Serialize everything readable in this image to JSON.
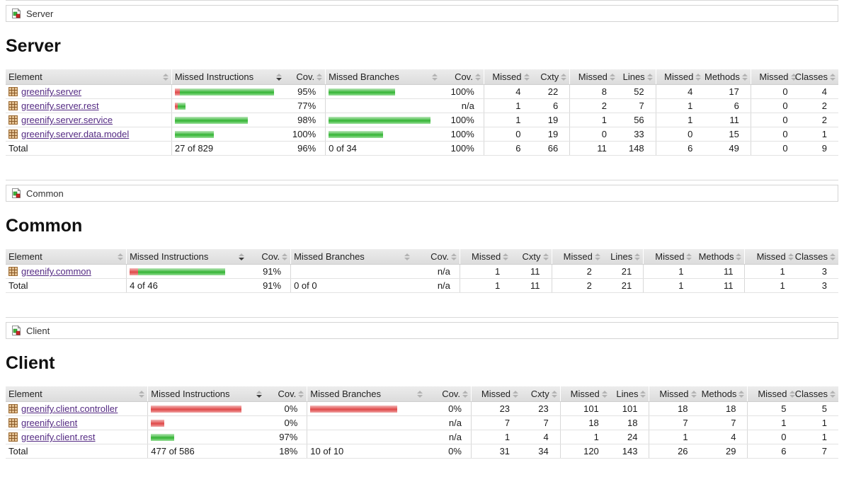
{
  "columns": [
    "Element",
    "Missed Instructions",
    "Cov.",
    "Missed Branches",
    "Cov.",
    "Missed",
    "Cxty",
    "Missed",
    "Lines",
    "Missed",
    "Methods",
    "Missed",
    "Classes"
  ],
  "colors": {
    "covered_green": "#34b434",
    "missed_red": "#e04848",
    "link_purple": "#542a83",
    "header_gray": "#e0e0e0"
  },
  "icons": {
    "breadcrumb": "report-group-icon",
    "package": "package-icon",
    "sort": "sort-arrows-icon"
  },
  "sections": [
    {
      "crumb": "Server",
      "title": "Server",
      "rows": [
        {
          "name": "greenify.server",
          "ibar": {
            "red": 7,
            "green": 133
          },
          "icov": "95%",
          "bbar": {
            "red": 0,
            "green": 94
          },
          "bcov": "100%",
          "vals": [
            "4",
            "22",
            "8",
            "52",
            "4",
            "17",
            "0",
            "4"
          ]
        },
        {
          "name": "greenify.server.rest",
          "ibar": {
            "red": 4,
            "green": 11
          },
          "icov": "77%",
          "bbar": {
            "red": 0,
            "green": 0
          },
          "bcov": "n/a",
          "vals": [
            "1",
            "6",
            "2",
            "7",
            "1",
            "6",
            "0",
            "2"
          ]
        },
        {
          "name": "greenify.server.service",
          "ibar": {
            "red": 0,
            "green": 103
          },
          "icov": "98%",
          "bbar": {
            "red": 0,
            "green": 144
          },
          "bcov": "100%",
          "vals": [
            "1",
            "19",
            "1",
            "56",
            "1",
            "11",
            "0",
            "2"
          ]
        },
        {
          "name": "greenify.server.data.model",
          "ibar": {
            "red": 0,
            "green": 55
          },
          "icov": "100%",
          "bbar": {
            "red": 0,
            "green": 77
          },
          "bcov": "100%",
          "vals": [
            "0",
            "19",
            "0",
            "33",
            "0",
            "15",
            "0",
            "1"
          ]
        }
      ],
      "total": {
        "label": "Total",
        "instr": "27 of 829",
        "icov": "96%",
        "branch": "0 of 34",
        "bcov": "100%",
        "vals": [
          "6",
          "66",
          "11",
          "148",
          "6",
          "49",
          "0",
          "9"
        ]
      }
    },
    {
      "crumb": "Common",
      "title": "Common",
      "rows": [
        {
          "name": "greenify.common",
          "ibar": {
            "red": 12,
            "green": 123
          },
          "icov": "91%",
          "bbar": {
            "red": 0,
            "green": 0
          },
          "bcov": "n/a",
          "vals": [
            "1",
            "11",
            "2",
            "21",
            "1",
            "11",
            "1",
            "3"
          ]
        }
      ],
      "total": {
        "label": "Total",
        "instr": "4 of 46",
        "icov": "91%",
        "branch": "0 of 0",
        "bcov": "n/a",
        "vals": [
          "1",
          "11",
          "2",
          "21",
          "1",
          "11",
          "1",
          "3"
        ]
      }
    },
    {
      "crumb": "Client",
      "title": "Client",
      "rows": [
        {
          "name": "greenify.client.controller",
          "ibar": {
            "red": 128,
            "green": 0
          },
          "icov": "0%",
          "bbar": {
            "red": 123,
            "green": 0
          },
          "bcov": "0%",
          "vals": [
            "23",
            "23",
            "101",
            "101",
            "18",
            "18",
            "5",
            "5"
          ]
        },
        {
          "name": "greenify.client",
          "ibar": {
            "red": 19,
            "green": 0
          },
          "icov": "0%",
          "bbar": {
            "red": 0,
            "green": 0
          },
          "bcov": "n/a",
          "vals": [
            "7",
            "7",
            "18",
            "18",
            "7",
            "7",
            "1",
            "1"
          ]
        },
        {
          "name": "greenify.client.rest",
          "ibar": {
            "red": 0,
            "green": 33
          },
          "icov": "97%",
          "bbar": {
            "red": 0,
            "green": 0
          },
          "bcov": "n/a",
          "vals": [
            "1",
            "4",
            "1",
            "24",
            "1",
            "4",
            "0",
            "1"
          ]
        }
      ],
      "total": {
        "label": "Total",
        "instr": "477 of 586",
        "icov": "18%",
        "branch": "10 of 10",
        "bcov": "0%",
        "vals": [
          "31",
          "34",
          "120",
          "143",
          "26",
          "29",
          "6",
          "7"
        ]
      }
    }
  ]
}
